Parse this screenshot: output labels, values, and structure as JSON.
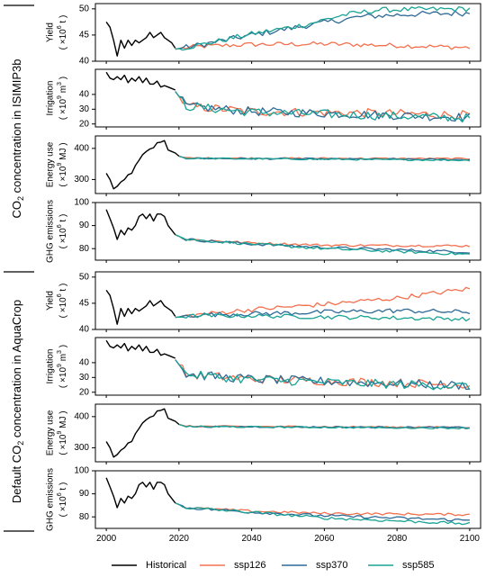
{
  "colors": {
    "historical": "#000000",
    "ssp126": "#F2704E",
    "ssp370": "#2E6A96",
    "ssp585": "#1AA394",
    "axis": "#000000"
  },
  "groups": [
    {
      "label_main": "CO",
      "label_sub": "2",
      "label_rest": " concentration in ISIMIP3b",
      "label_pre": ""
    },
    {
      "label_main": "CO",
      "label_sub": "2",
      "label_rest": " concentration in AquaCrop",
      "label_pre": "Default "
    }
  ],
  "x_axis": {
    "range": [
      1997,
      2103
    ],
    "ticks": [
      2000,
      2020,
      2040,
      2060,
      2080,
      2100
    ],
    "tick_labels": [
      "2000",
      "2020",
      "2040",
      "2060",
      "2080",
      "2100"
    ]
  },
  "legend": {
    "position": "bottom",
    "entries": [
      {
        "key": "historical",
        "label": "Historical"
      },
      {
        "key": "ssp126",
        "label": "ssp126"
      },
      {
        "key": "ssp370",
        "label": "ssp370"
      },
      {
        "key": "ssp585",
        "label": "ssp585"
      }
    ]
  },
  "chart_data": [
    {
      "type": "line",
      "group": 0,
      "ylabel_main": "Yield",
      "ylabel_unit_pre": "( ×10",
      "ylabel_unit_sup": "6",
      "ylabel_unit_post": " t )",
      "ylim": [
        40,
        51
      ],
      "yticks": [
        40,
        45,
        50
      ],
      "historical": {
        "x": [
          2000,
          2001,
          2002,
          2003,
          2004,
          2005,
          2006,
          2007,
          2008,
          2009,
          2010,
          2011,
          2012,
          2013,
          2014,
          2015,
          2016,
          2017,
          2018,
          2019
        ],
        "y": [
          47.5,
          46.5,
          44,
          41,
          44,
          42.5,
          44,
          43,
          44,
          43.5,
          44,
          44.5,
          45.5,
          44.5,
          45,
          45.5,
          44.5,
          44,
          43.5,
          42.5
        ]
      },
      "series": [
        {
          "key": "ssp126",
          "anchors": [
            [
              2019,
              42.3
            ],
            [
              2025,
              42.8
            ],
            [
              2040,
              43.2
            ],
            [
              2060,
              43.3
            ],
            [
              2080,
              43.0
            ],
            [
              2100,
              42.6
            ]
          ],
          "noise": 0.45
        },
        {
          "key": "ssp370",
          "anchors": [
            [
              2019,
              42.3
            ],
            [
              2025,
              43.0
            ],
            [
              2040,
              45.0
            ],
            [
              2055,
              46.8
            ],
            [
              2070,
              48.5
            ],
            [
              2085,
              49.0
            ],
            [
              2100,
              49.2
            ]
          ],
          "noise": 0.55
        },
        {
          "key": "ssp585",
          "anchors": [
            [
              2019,
              42.3
            ],
            [
              2025,
              43.0
            ],
            [
              2040,
              45.2
            ],
            [
              2055,
              47.0
            ],
            [
              2065,
              48.8
            ],
            [
              2075,
              49.8
            ],
            [
              2100,
              50.0
            ]
          ],
          "noise": 0.5
        }
      ]
    },
    {
      "type": "line",
      "group": 0,
      "ylabel_main": "Irrigation",
      "ylabel_unit_pre": "( ×10",
      "ylabel_unit_sup": "9",
      "ylabel_unit_post": " m",
      "ylabel_unit_sup2": "3",
      "ylabel_unit_post2": " )",
      "ylim": [
        18,
        57
      ],
      "yticks": [
        20,
        30,
        40
      ],
      "historical": {
        "x": [
          2000,
          2001,
          2002,
          2003,
          2004,
          2005,
          2006,
          2007,
          2008,
          2009,
          2010,
          2011,
          2012,
          2013,
          2014,
          2015,
          2016,
          2017,
          2018,
          2019
        ],
        "y": [
          55,
          51,
          50,
          52,
          50,
          53,
          48,
          51,
          49,
          52,
          48,
          51,
          47,
          47,
          49,
          45,
          46,
          45,
          44,
          43
        ]
      },
      "series": [
        {
          "key": "ssp126",
          "anchors": [
            [
              2019,
              42
            ],
            [
              2022,
              32
            ],
            [
              2040,
              28.5
            ],
            [
              2070,
              27.5
            ],
            [
              2100,
              26
            ]
          ],
          "noise": 3.0
        },
        {
          "key": "ssp370",
          "anchors": [
            [
              2019,
              42
            ],
            [
              2022,
              32
            ],
            [
              2040,
              28.5
            ],
            [
              2070,
              26.5
            ],
            [
              2100,
              24.5
            ]
          ],
          "noise": 3.0
        },
        {
          "key": "ssp585",
          "anchors": [
            [
              2019,
              42
            ],
            [
              2022,
              32
            ],
            [
              2040,
              28.0
            ],
            [
              2070,
              26.0
            ],
            [
              2100,
              24
            ]
          ],
          "noise": 3.0
        }
      ]
    },
    {
      "type": "line",
      "group": 0,
      "ylabel_main": "Energy use",
      "ylabel_unit_pre": "( ×10",
      "ylabel_unit_sup": "9",
      "ylabel_unit_post": " MJ )",
      "ylim": [
        255,
        440
      ],
      "yticks": [
        300,
        400
      ],
      "historical": {
        "x": [
          2000,
          2001,
          2002,
          2003,
          2004,
          2005,
          2006,
          2007,
          2008,
          2009,
          2010,
          2011,
          2012,
          2013,
          2014,
          2015,
          2016,
          2017,
          2018,
          2019,
          2020
        ],
        "y": [
          320,
          300,
          270,
          278,
          292,
          300,
          315,
          320,
          345,
          362,
          380,
          390,
          398,
          402,
          418,
          420,
          425,
          395,
          390,
          385,
          375
        ]
      },
      "series": [
        {
          "key": "ssp126",
          "anchors": [
            [
              2020,
              375
            ],
            [
              2022,
              369
            ],
            [
              2100,
              367
            ]
          ],
          "noise": 2.5
        },
        {
          "key": "ssp370",
          "anchors": [
            [
              2020,
              375
            ],
            [
              2022,
              368
            ],
            [
              2100,
              364
            ]
          ],
          "noise": 2.5
        },
        {
          "key": "ssp585",
          "anchors": [
            [
              2020,
              375
            ],
            [
              2022,
              368
            ],
            [
              2100,
              362
            ]
          ],
          "noise": 2.5
        }
      ]
    },
    {
      "type": "line",
      "group": 0,
      "ylabel_main": "GHG emissions",
      "ylabel_unit_pre": "( ×10",
      "ylabel_unit_sup": "6",
      "ylabel_unit_post": " t )",
      "ylim": [
        75,
        100
      ],
      "yticks": [
        80,
        90,
        100
      ],
      "historical": {
        "x": [
          2000,
          2001,
          2002,
          2003,
          2004,
          2005,
          2006,
          2007,
          2008,
          2009,
          2010,
          2011,
          2012,
          2013,
          2014,
          2015,
          2016,
          2017,
          2018,
          2019
        ],
        "y": [
          97,
          93,
          89,
          84,
          88,
          86,
          89,
          88,
          90,
          94,
          95,
          93,
          95,
          92,
          95,
          95,
          94,
          90,
          88,
          86
        ]
      },
      "series": [
        {
          "key": "ssp126",
          "anchors": [
            [
              2019,
              86
            ],
            [
              2022,
              84
            ],
            [
              2040,
              82.5
            ],
            [
              2060,
              81.5
            ],
            [
              2100,
              81.2
            ]
          ],
          "noise": 0.5
        },
        {
          "key": "ssp370",
          "anchors": [
            [
              2019,
              86
            ],
            [
              2022,
              84
            ],
            [
              2040,
              82.0
            ],
            [
              2060,
              80.5
            ],
            [
              2100,
              78.5
            ]
          ],
          "noise": 0.6
        },
        {
          "key": "ssp585",
          "anchors": [
            [
              2019,
              86
            ],
            [
              2022,
              84
            ],
            [
              2040,
              82.0
            ],
            [
              2060,
              80.0
            ],
            [
              2100,
              77.5
            ]
          ],
          "noise": 0.6
        }
      ]
    },
    {
      "type": "line",
      "group": 1,
      "ylabel_main": "Yield",
      "ylabel_unit_pre": "( ×10",
      "ylabel_unit_sup": "6",
      "ylabel_unit_post": " t )",
      "ylim": [
        40,
        51
      ],
      "yticks": [
        40,
        45,
        50
      ],
      "historical": {
        "x": [
          2000,
          2001,
          2002,
          2003,
          2004,
          2005,
          2006,
          2007,
          2008,
          2009,
          2010,
          2011,
          2012,
          2013,
          2014,
          2015,
          2016,
          2017,
          2018,
          2019
        ],
        "y": [
          47.5,
          46.5,
          44,
          41,
          44,
          42.5,
          44,
          43,
          44,
          43.5,
          44,
          44.5,
          45.5,
          44.5,
          45,
          45.5,
          44.5,
          44,
          43.5,
          42.5
        ]
      },
      "series": [
        {
          "key": "ssp126",
          "anchors": [
            [
              2019,
              42.3
            ],
            [
              2025,
              42.8
            ],
            [
              2040,
              43.8
            ],
            [
              2060,
              44.8
            ],
            [
              2080,
              46.0
            ],
            [
              2100,
              47.8
            ]
          ],
          "noise": 0.45
        },
        {
          "key": "ssp370",
          "anchors": [
            [
              2019,
              42.3
            ],
            [
              2025,
              42.8
            ],
            [
              2040,
              43.0
            ],
            [
              2060,
              43.3
            ],
            [
              2080,
              43.6
            ],
            [
              2100,
              43.3
            ]
          ],
          "noise": 0.45
        },
        {
          "key": "ssp585",
          "anchors": [
            [
              2019,
              42.3
            ],
            [
              2025,
              42.6
            ],
            [
              2040,
              42.6
            ],
            [
              2060,
              42.4
            ],
            [
              2080,
              42.2
            ],
            [
              2100,
              42.0
            ]
          ],
          "noise": 0.4
        }
      ]
    },
    {
      "type": "line",
      "group": 1,
      "ylabel_main": "Irrigation",
      "ylabel_unit_pre": "( ×10",
      "ylabel_unit_sup": "9",
      "ylabel_unit_post": " m",
      "ylabel_unit_sup2": "3",
      "ylabel_unit_post2": " )",
      "ylim": [
        18,
        57
      ],
      "yticks": [
        20,
        30,
        40
      ],
      "historical": {
        "x": [
          2000,
          2001,
          2002,
          2003,
          2004,
          2005,
          2006,
          2007,
          2008,
          2009,
          2010,
          2011,
          2012,
          2013,
          2014,
          2015,
          2016,
          2017,
          2018,
          2019
        ],
        "y": [
          55,
          51,
          50,
          52,
          50,
          53,
          48,
          51,
          49,
          52,
          48,
          51,
          47,
          47,
          49,
          45,
          46,
          45,
          44,
          43
        ]
      },
      "series": [
        {
          "key": "ssp126",
          "anchors": [
            [
              2019,
              42
            ],
            [
              2022,
              32
            ],
            [
              2040,
              29
            ],
            [
              2070,
              27
            ],
            [
              2100,
              25
            ]
          ],
          "noise": 3.0
        },
        {
          "key": "ssp370",
          "anchors": [
            [
              2019,
              42
            ],
            [
              2022,
              32
            ],
            [
              2040,
              29
            ],
            [
              2070,
              26.5
            ],
            [
              2100,
              24.5
            ]
          ],
          "noise": 3.0
        },
        {
          "key": "ssp585",
          "anchors": [
            [
              2019,
              42
            ],
            [
              2022,
              32
            ],
            [
              2040,
              28.5
            ],
            [
              2070,
              26
            ],
            [
              2100,
              24
            ]
          ],
          "noise": 3.0
        }
      ]
    },
    {
      "type": "line",
      "group": 1,
      "ylabel_main": "Energy use",
      "ylabel_unit_pre": "( ×10",
      "ylabel_unit_sup": "9",
      "ylabel_unit_post": " MJ )",
      "ylim": [
        255,
        440
      ],
      "yticks": [
        300,
        400
      ],
      "historical": {
        "x": [
          2000,
          2001,
          2002,
          2003,
          2004,
          2005,
          2006,
          2007,
          2008,
          2009,
          2010,
          2011,
          2012,
          2013,
          2014,
          2015,
          2016,
          2017,
          2018,
          2019,
          2020
        ],
        "y": [
          320,
          300,
          270,
          278,
          292,
          300,
          315,
          320,
          345,
          362,
          380,
          390,
          398,
          402,
          418,
          420,
          425,
          395,
          390,
          385,
          375
        ]
      },
      "series": [
        {
          "key": "ssp126",
          "anchors": [
            [
              2020,
              375
            ],
            [
              2022,
              369
            ],
            [
              2100,
              366
            ]
          ],
          "noise": 2.5
        },
        {
          "key": "ssp370",
          "anchors": [
            [
              2020,
              375
            ],
            [
              2022,
              368
            ],
            [
              2100,
              365
            ]
          ],
          "noise": 2.5
        },
        {
          "key": "ssp585",
          "anchors": [
            [
              2020,
              375
            ],
            [
              2022,
              368
            ],
            [
              2100,
              363
            ]
          ],
          "noise": 2.5
        }
      ]
    },
    {
      "type": "line",
      "group": 1,
      "ylabel_main": "GHG emissions",
      "ylabel_unit_pre": "( ×10",
      "ylabel_unit_sup": "6",
      "ylabel_unit_post": " t )",
      "ylim": [
        75,
        100
      ],
      "yticks": [
        80,
        90,
        100
      ],
      "historical": {
        "x": [
          2000,
          2001,
          2002,
          2003,
          2004,
          2005,
          2006,
          2007,
          2008,
          2009,
          2010,
          2011,
          2012,
          2013,
          2014,
          2015,
          2016,
          2017,
          2018,
          2019
        ],
        "y": [
          97,
          93,
          89,
          84,
          88,
          86,
          89,
          88,
          90,
          94,
          95,
          93,
          95,
          92,
          95,
          95,
          94,
          90,
          88,
          86
        ]
      },
      "series": [
        {
          "key": "ssp126",
          "anchors": [
            [
              2019,
              86
            ],
            [
              2022,
              84
            ],
            [
              2040,
              82.5
            ],
            [
              2060,
              81.5
            ],
            [
              2100,
              81.0
            ]
          ],
          "noise": 0.5
        },
        {
          "key": "ssp370",
          "anchors": [
            [
              2019,
              86
            ],
            [
              2022,
              84
            ],
            [
              2040,
              82.0
            ],
            [
              2060,
              80.5
            ],
            [
              2100,
              78.5
            ]
          ],
          "noise": 0.6
        },
        {
          "key": "ssp585",
          "anchors": [
            [
              2019,
              86
            ],
            [
              2022,
              84
            ],
            [
              2040,
              82.0
            ],
            [
              2060,
              79.5
            ],
            [
              2100,
              77.0
            ]
          ],
          "noise": 0.6
        }
      ]
    }
  ]
}
